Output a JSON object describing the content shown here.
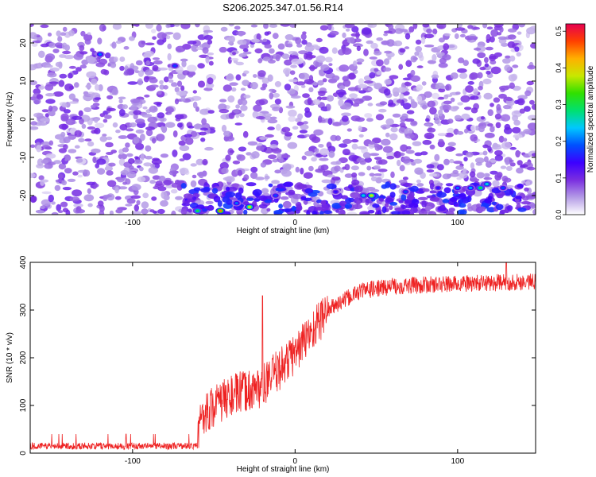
{
  "page_title": "S206.2025.347.01.56.R14",
  "chart_data": [
    {
      "type": "heatmap",
      "xlabel": "Height of straight line (km)",
      "ylabel": "Frequency (Hz)",
      "xlim": [
        -163,
        148
      ],
      "ylim": [
        -25,
        25
      ],
      "x_ticks": [
        -100,
        0,
        100
      ],
      "x_tick_labels": [
        "-100",
        "0",
        "100"
      ],
      "y_ticks": [
        -20,
        -10,
        0,
        10,
        20
      ],
      "y_tick_labels": [
        "-20",
        "-10",
        "0",
        "10",
        "20"
      ],
      "colorbar": {
        "label": "Normalized spectral amplitude",
        "range": [
          0,
          0.52
        ],
        "ticks": [
          0,
          0.1,
          0.2,
          0.3,
          0.4,
          0.5
        ],
        "tick_labels": [
          "0.0",
          "0.1",
          "0.2",
          "0.3",
          "0.4",
          "0.5"
        ],
        "colors": [
          "#ffffff",
          "#b49be6",
          "#7a2ee0",
          "#3c00ff",
          "#0050ff",
          "#00c8ff",
          "#00e070",
          "#30e000",
          "#c8e800",
          "#ffb000",
          "#ff4000",
          "#e60050"
        ]
      },
      "background_level": 0.03,
      "blob_level_typical": 0.08,
      "notable_features": [
        {
          "description": "vertical white stripe",
          "x": -48
        },
        {
          "description": "strong signal band",
          "y_range": [
            -25,
            -17
          ],
          "peak_values": [
            0.3,
            0.38,
            0.45
          ]
        }
      ]
    },
    {
      "type": "line",
      "xlabel": "Height of straight line (km)",
      "ylabel": "SNR (10 * v/v)",
      "xlim": [
        -163,
        148
      ],
      "ylim": [
        0,
        400
      ],
      "x_ticks": [
        -100,
        0,
        100
      ],
      "x_tick_labels": [
        "-100",
        "0",
        "100"
      ],
      "y_ticks": [
        0,
        100,
        200,
        300,
        400
      ],
      "y_tick_labels": [
        "0",
        "100",
        "200",
        "300",
        "400"
      ],
      "line_color": "#ee2222",
      "trend": [
        {
          "x": -163,
          "y": 15
        },
        {
          "x": -60,
          "y": 15
        },
        {
          "x": -58,
          "y": 80
        },
        {
          "x": -40,
          "y": 120
        },
        {
          "x": -20,
          "y": 140
        },
        {
          "x": 0,
          "y": 210
        },
        {
          "x": 20,
          "y": 300
        },
        {
          "x": 40,
          "y": 340
        },
        {
          "x": 60,
          "y": 350
        },
        {
          "x": 100,
          "y": 355
        },
        {
          "x": 148,
          "y": 360
        }
      ],
      "spikes": [
        {
          "x": -20,
          "y": 330
        },
        {
          "x": 130,
          "y": 400
        }
      ]
    }
  ]
}
